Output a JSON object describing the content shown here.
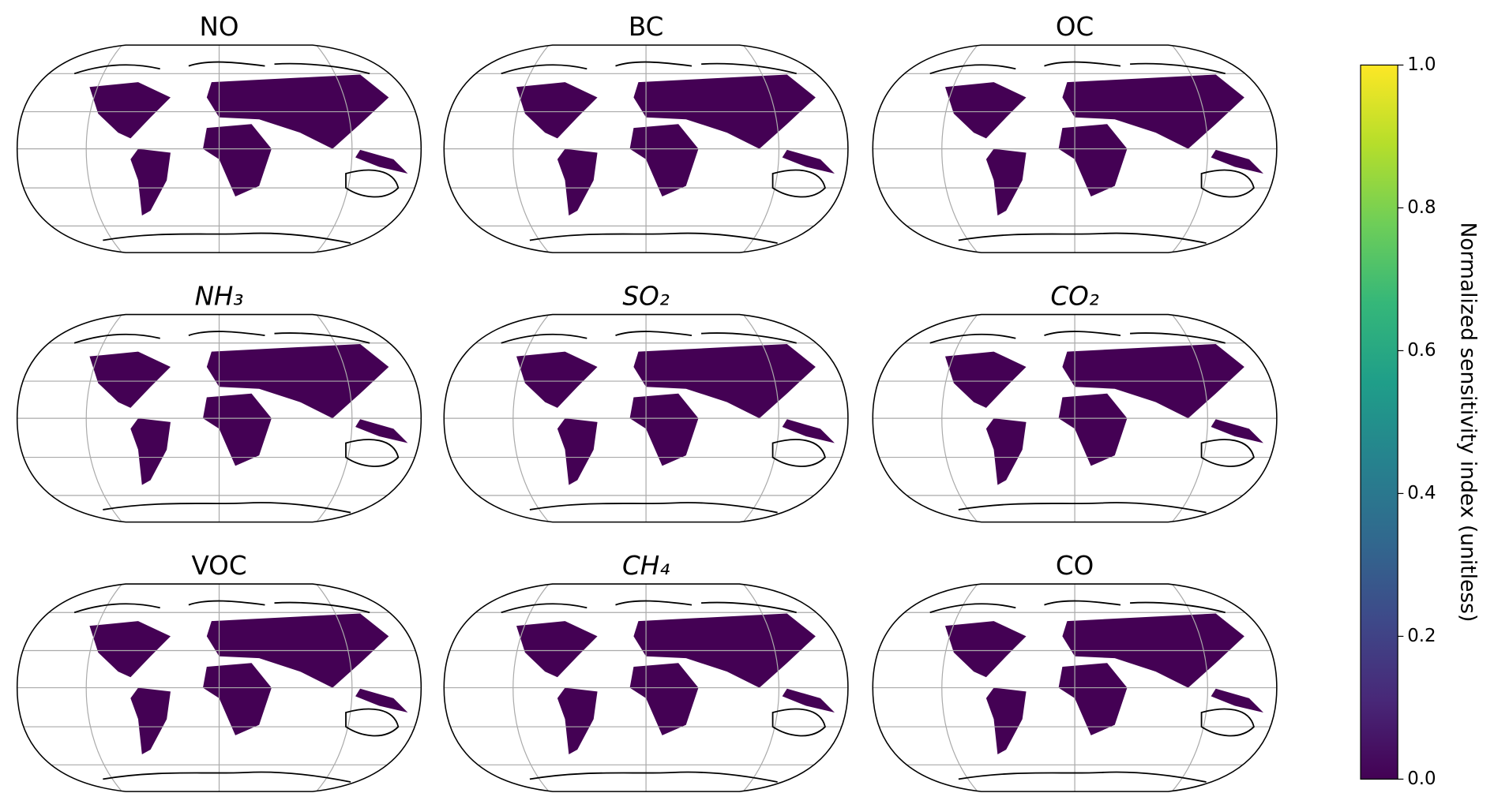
{
  "panels": [
    {
      "title": "NO",
      "italic": false
    },
    {
      "title": "BC",
      "italic": false
    },
    {
      "title": "OC",
      "italic": false
    },
    {
      "title": "NH₃",
      "italic": true
    },
    {
      "title": "SO₂",
      "italic": true
    },
    {
      "title": "CO₂",
      "italic": true
    },
    {
      "title": "VOC",
      "italic": false
    },
    {
      "title": "CH₄",
      "italic": true
    },
    {
      "title": "CO",
      "italic": false
    }
  ],
  "colorbar": {
    "label": "Normalized sensitivity index (unitless)",
    "lim": [
      0,
      1
    ],
    "ticks": [
      {
        "value": 0,
        "label": "0.0"
      },
      {
        "value": 0.2,
        "label": "0.2"
      },
      {
        "value": 0.4,
        "label": "0.4"
      },
      {
        "value": 0.6,
        "label": "0.6"
      },
      {
        "value": 0.8,
        "label": "0.8"
      },
      {
        "value": 1,
        "label": "1.0"
      }
    ],
    "colors": [
      "#440154",
      "#482878",
      "#3e4989",
      "#31688e",
      "#26828e",
      "#1f9e89",
      "#35b779",
      "#6ece58",
      "#b5de2b",
      "#fde725"
    ]
  }
}
